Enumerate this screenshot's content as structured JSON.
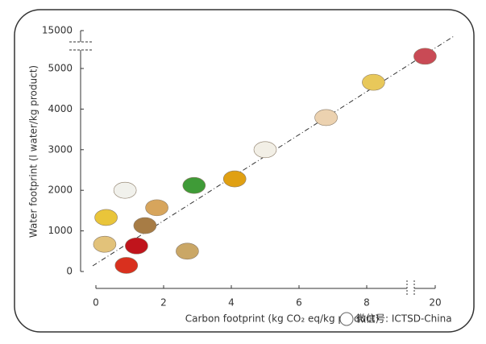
{
  "chart_data": {
    "type": "scatter",
    "xlabel": "Carbon footprint (kg CO₂ eq/kg product)",
    "ylabel": "Water footprint (l water/kg product)",
    "x": [
      0.9,
      1.2,
      0.26,
      0.3,
      1.45,
      1.8,
      0.86,
      2.7,
      2.9,
      4.1,
      5.0,
      6.8,
      8.2,
      19.7
    ],
    "values": [
      150,
      630,
      670,
      1330,
      1130,
      1570,
      2000,
      500,
      2120,
      2280,
      3000,
      3790,
      4660,
      5300
    ],
    "point_colors": [
      "#d9301e",
      "#c0141c",
      "#e2c27a",
      "#e9c53a",
      "#a77c45",
      "#d7a55c",
      "#f1f1ec",
      "#caa766",
      "#3f9b37",
      "#e0a012",
      "#f2efe6",
      "#ecd2b0",
      "#e8c85a",
      "#c94a55"
    ],
    "xlim": [
      0,
      20
    ],
    "xticks": [
      0,
      2,
      4,
      6,
      8,
      20
    ],
    "xbreak": true,
    "ylim": [
      0,
      15000
    ],
    "yticks": [
      0,
      1000,
      2000,
      3000,
      4000,
      5000,
      15000
    ],
    "ybreak": true,
    "trendline": true,
    "watermark": "微信号: ICTSD-China"
  }
}
